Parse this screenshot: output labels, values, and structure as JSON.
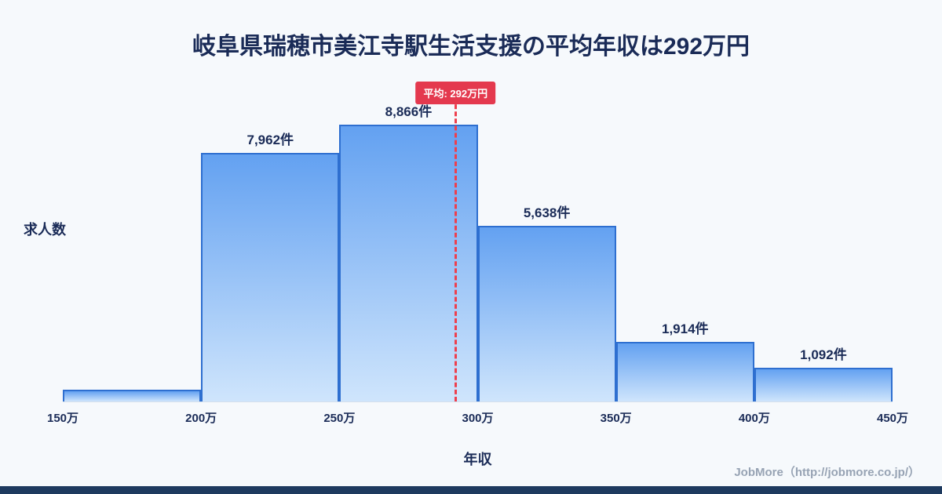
{
  "chart_data": {
    "type": "bar",
    "title": "岐阜県瑞穂市美江寺駅生活支援の平均年収は292万円",
    "xlabel": "年収",
    "ylabel": "求人数",
    "x_ticks": [
      "150万",
      "200万",
      "250万",
      "300万",
      "350万",
      "400万",
      "450万"
    ],
    "x_range": [
      150,
      450
    ],
    "values": [
      380,
      7962,
      8866,
      5638,
      1914,
      1092
    ],
    "bar_labels": [
      "",
      "7,962件",
      "8,866件",
      "5,638件",
      "1,914件",
      "1,092件"
    ],
    "ylim": [
      0,
      9000
    ],
    "grid": false,
    "legend": "none",
    "average": {
      "value": 292,
      "label": "平均: 292万円"
    },
    "colors": {
      "background": "#f6f9fc",
      "bar_top": "#63a1f1",
      "bar_bottom": "#cfe5fc",
      "bar_border": "#2e6fd0",
      "average_line": "#ee3f4d",
      "badge_bg": "#e4394e",
      "text": "#1a2b57"
    }
  },
  "footer": {
    "credit": "JobMore（http://jobmore.co.jp/）"
  }
}
